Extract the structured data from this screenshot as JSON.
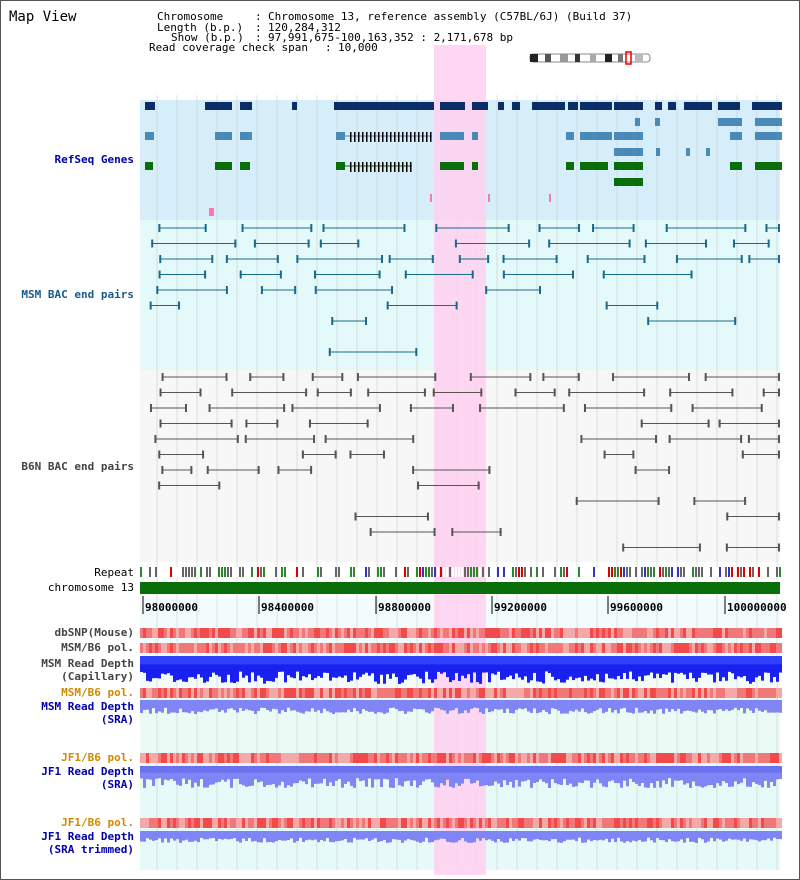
{
  "view_title": "Map View",
  "header": {
    "chromosome_key": "Chromosome",
    "chromosome_val": "Chromosome 13, reference assembly (C57BL/6J) (Build 37)",
    "length_key": "Length (b.p.)",
    "length_val": "120,284,312",
    "show_key": "Show (b.p.)",
    "show_val": "97,991,675-100,163,352 : 2,171,678 bp",
    "coverage_key": "Read coverage check span",
    "coverage_val": "10,000"
  },
  "tracks": {
    "refseq": "RefSeq Genes",
    "msm_bac": "MSM BAC end pairs",
    "b6n_bac": "B6N BAC end pairs",
    "repeat": "Repeat",
    "chromosome": "chromosome 13",
    "dbsnp": "dbSNP(Mouse)",
    "msm_b6_pol_1": "MSM/B6 pol.",
    "msm_depth_cap_1": "MSM Read Depth",
    "msm_depth_cap_2": "(Capillary)",
    "msm_b6_pol_2": "MSM/B6 pol.",
    "msm_depth_sra_1": "MSM Read Depth",
    "msm_depth_sra_2": "(SRA)",
    "jf1_pol_1": "JF1/B6 pol.",
    "jf1_depth_1": "JF1 Read Depth",
    "jf1_depth_2": "(SRA)",
    "jf1_pol_2": "JF1/B6 pol.",
    "jf1_depth_trim_1": "JF1 Read Depth",
    "jf1_depth_trim_2": "(SRA trimmed)"
  },
  "axis": {
    "ticks": [
      "98000000",
      "98400000",
      "98800000",
      "99200000",
      "99600000",
      "100000000"
    ]
  },
  "colors": {
    "refseq_bg": "#d6eefa",
    "msm_bg": "#e4fafa",
    "b6n_bg": "#f7f7f7",
    "highlight": "#ffd0f0",
    "gene_dark": "#0b2e68",
    "gene_mid": "#4a8ab8",
    "gene_green": "#0a6e0a",
    "msm_line": "#1a6a8a",
    "b6n_line": "#555555",
    "chromosome_bar": "#0a6e0a",
    "depth_blue": "#1a20f0",
    "depth_light": "#7f85f5",
    "label_blue": "#0000aa",
    "label_orange": "#d08a00",
    "label_teal": "#1a5a8a",
    "label_gray": "#444444"
  }
}
